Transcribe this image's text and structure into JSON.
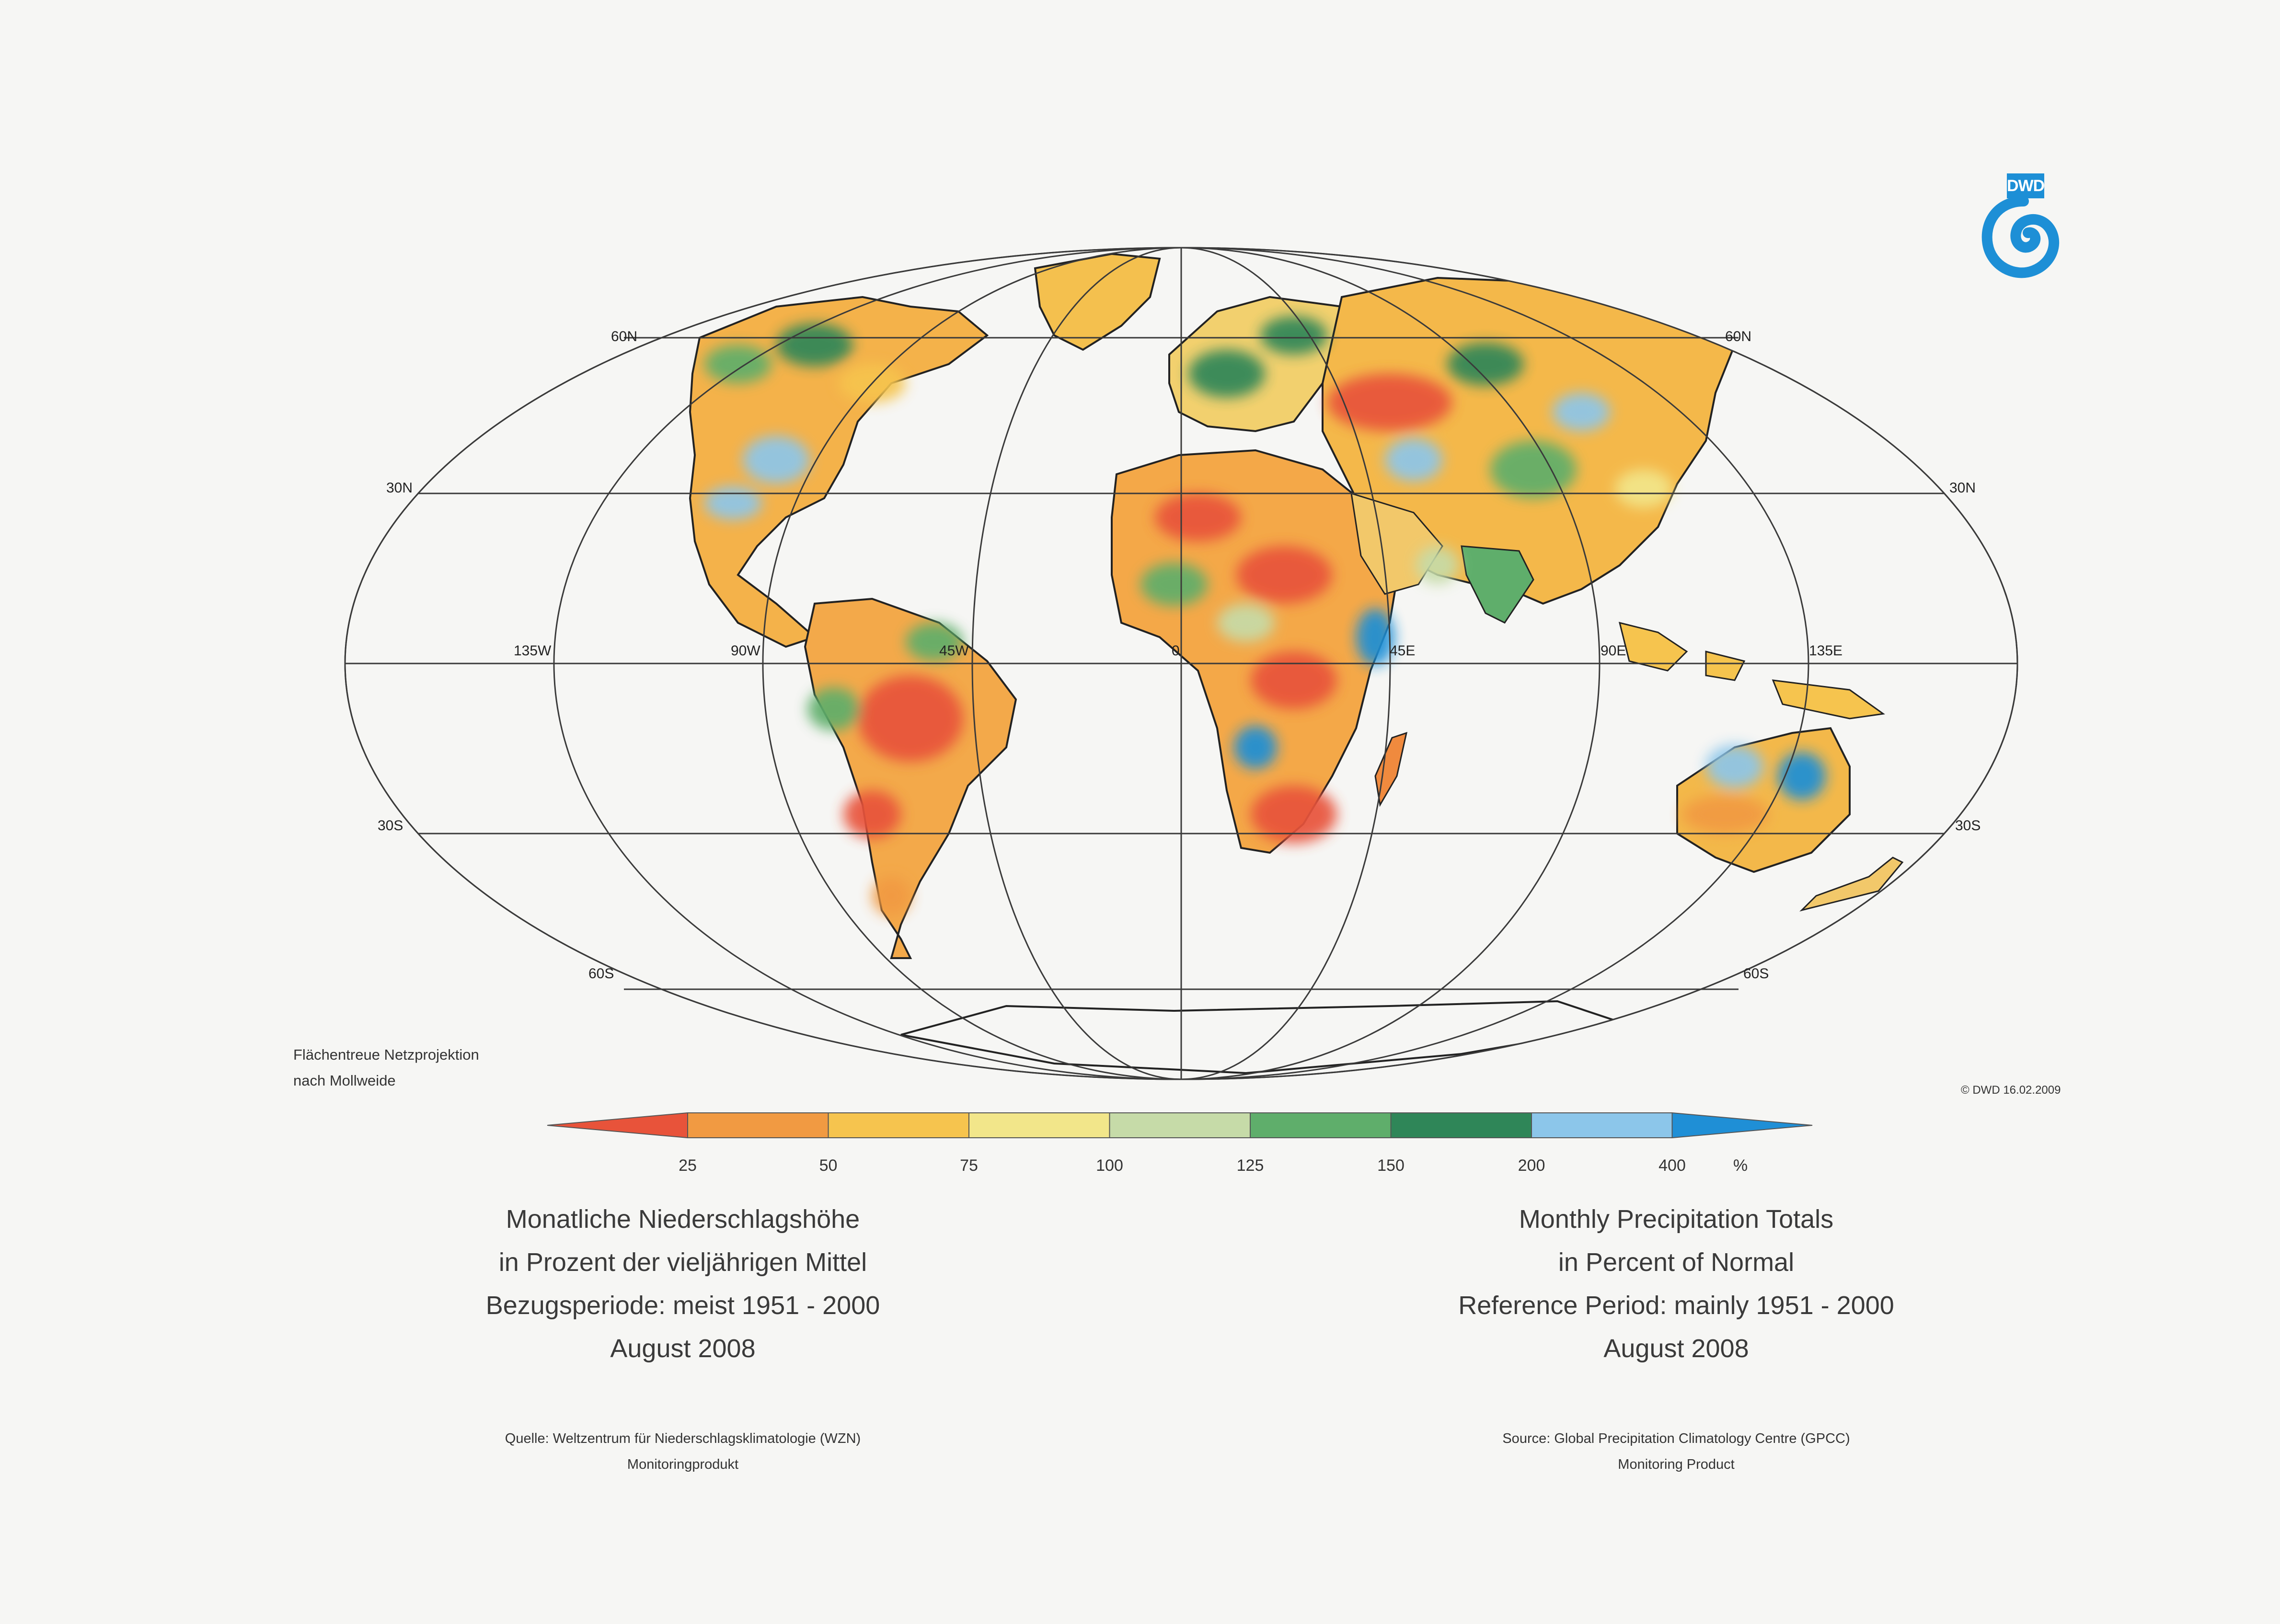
{
  "map": {
    "lat_labels": [
      "60N",
      "30N",
      "30S",
      "60S"
    ],
    "lon_labels": [
      "135W",
      "90W",
      "45W",
      "0",
      "45E",
      "90E",
      "135E"
    ],
    "projection_line1": "Flächentreue Netzprojektion",
    "projection_line2": "nach Mollweide",
    "copyright": "© DWD 16.02.2009"
  },
  "legend": {
    "ticks": [
      "25",
      "50",
      "75",
      "100",
      "125",
      "150",
      "200",
      "400"
    ],
    "unit": "%",
    "colors": [
      "#e8533a",
      "#f19a42",
      "#f6c44e",
      "#f2e68a",
      "#c6dba8",
      "#5fae6b",
      "#2f8658",
      "#8cc6ea",
      "#1f8fd6"
    ]
  },
  "logo": {
    "text": "DWD",
    "color": "#1d8fd6"
  },
  "titles": {
    "de": [
      "Monatliche Niederschlagshöhe",
      "in Prozent der vieljährigen Mittel",
      "Bezugsperiode: meist 1951 - 2000",
      "August 2008"
    ],
    "en": [
      "Monthly Precipitation Totals",
      "in Percent of Normal",
      "Reference Period: mainly 1951 - 2000",
      "August 2008"
    ]
  },
  "sources": {
    "de": [
      "Quelle: Weltzentrum für Niederschlagsklimatologie (WZN)",
      "Monitoringprodukt"
    ],
    "en": [
      "Source: Global Precipitation Climatology Centre (GPCC)",
      "Monitoring Product"
    ]
  }
}
